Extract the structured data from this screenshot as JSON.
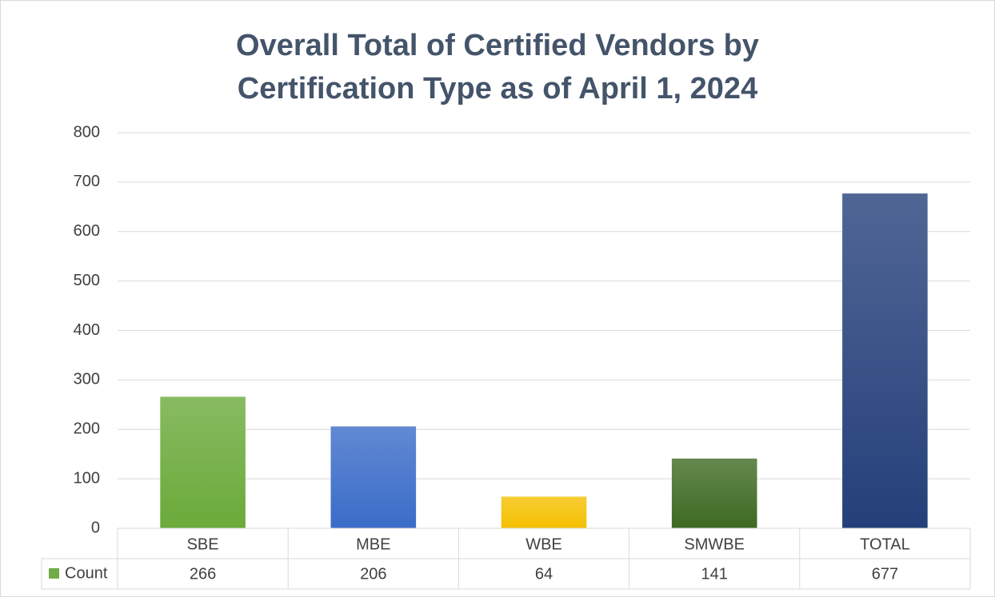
{
  "chart_data": {
    "type": "bar",
    "title": "Overall Total of Certified Vendors by Certification Type as of April 1, 2024",
    "categories": [
      "SBE",
      "MBE",
      "WBE",
      "SMWBE",
      "TOTAL"
    ],
    "series": [
      {
        "name": "Count",
        "color": "#70ad47",
        "values": [
          266,
          206,
          64,
          141,
          677
        ],
        "colors": [
          "#6aaa3a",
          "#3a6cc8",
          "#f5c000",
          "#3d6a22",
          "#24407a"
        ]
      }
    ],
    "ylim": [
      0,
      800
    ],
    "yticks": [
      0,
      100,
      200,
      300,
      400,
      500,
      600,
      700,
      800
    ],
    "grid": true,
    "data_table": true
  }
}
